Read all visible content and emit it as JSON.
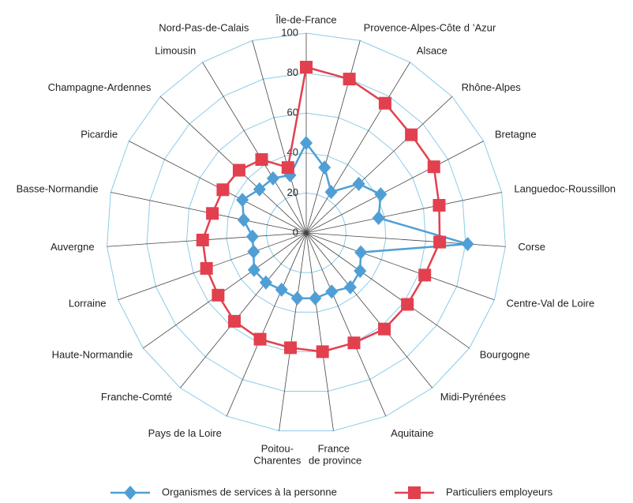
{
  "chart_data": {
    "type": "radar",
    "categories": [
      "Île-de-France",
      "Provence-Alpes-Côte d ’Azur",
      "Alsace",
      "Rhône-Alpes",
      "Bretagne",
      "Languedoc-Roussillon",
      "Corse",
      "Centre-Val de Loire",
      "Bourgogne",
      "Midi-Pyrénées",
      "Aquitaine",
      "France de province",
      "Poitou-Charentes",
      "Pays de la Loire",
      "Franche-Comté",
      "Haute-Normandie",
      "Lorraine",
      "Auvergne",
      "Basse-Normandie",
      "Picardie",
      "Champagne-Ardennes",
      "Limousin",
      "Nord-Pas-de-Calais"
    ],
    "series": [
      {
        "name": "Organismes de services à la personne",
        "color": "#4f9fd6",
        "marker": "diamond",
        "values": [
          45,
          34,
          24,
          36,
          42,
          37,
          81,
          29,
          33,
          35,
          32,
          33,
          33,
          31,
          32,
          32,
          28,
          27,
          32,
          36,
          32,
          32,
          30
        ]
      },
      {
        "name": "Particuliers employeurs",
        "color": "#e2404f",
        "marker": "square",
        "values": [
          83,
          80,
          76,
          72,
          72,
          68,
          67,
          63,
          62,
          62,
          60,
          60,
          58,
          58,
          57,
          54,
          53,
          52,
          48,
          47,
          46,
          43,
          34
        ]
      }
    ],
    "rlim": [
      0,
      100
    ],
    "rticks": [
      0,
      20,
      40,
      60,
      80,
      100
    ]
  }
}
